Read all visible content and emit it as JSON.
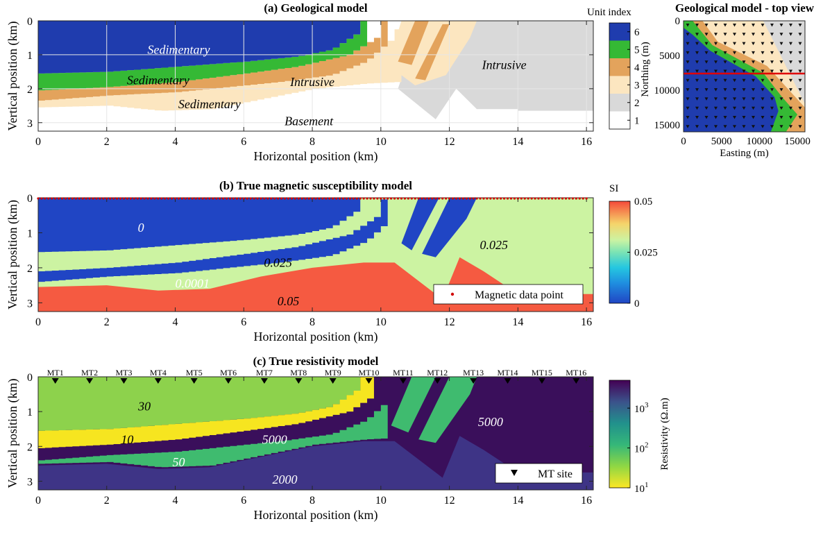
{
  "colors": {
    "unit1": "#ffffff",
    "unit2": "#d9d9d9",
    "unit3": "#fce6c0",
    "unit4": "#e3a35c",
    "unit5": "#35b935",
    "unit6": "#1f3cae",
    "sus_zero": "#2045c4",
    "sus_low": "#ccf3a2",
    "sus_high": "#f55a41",
    "res_30": "#8dd24c",
    "res_10": "#f6e520",
    "res_50": "#3fbb6f",
    "res_5000": "#3a0f5b",
    "res_2000": "#3e3486",
    "profile_line": "#e00000",
    "mag_point": "#d00000"
  },
  "chart_data": [
    {
      "type": "heatmap",
      "title": "(a) Geological model",
      "xlabel": "Horizontal position (km)",
      "ylabel": "Vertical position (km)",
      "xlim": [
        0,
        16.2
      ],
      "ylim": [
        3.25,
        0
      ],
      "xticks": [
        "0",
        "2",
        "4",
        "6",
        "8",
        "10",
        "12",
        "14",
        "16"
      ],
      "yticks": [
        "0",
        "1",
        "2",
        "3"
      ],
      "grid": true,
      "colorbar": {
        "title": "Unit index",
        "ticks": [
          "1",
          "2",
          "3",
          "4",
          "5",
          "6"
        ]
      },
      "annotations": [
        {
          "text": "Sedimentary",
          "x": 4.1,
          "y": 0.85
        },
        {
          "text": "Sedimentary",
          "x": 3.5,
          "y": 1.75
        },
        {
          "text": "Sedimentary",
          "x": 5.0,
          "y": 2.45
        },
        {
          "text": "Intrusive",
          "x": 8.0,
          "y": 1.8
        },
        {
          "text": "Intrusive",
          "x": 13.6,
          "y": 1.3
        },
        {
          "text": "Basement",
          "x": 7.9,
          "y": 2.95
        }
      ],
      "units": [
        {
          "name": "Basement",
          "index": 1
        },
        {
          "name": "Intrusive",
          "index": 2
        },
        {
          "name": "Sedimentary",
          "index": 3
        },
        {
          "name": "Sedimentary",
          "index": 4
        },
        {
          "name": "Sedimentary",
          "index": 5
        },
        {
          "name": "Sedimentary",
          "index": 6
        }
      ]
    },
    {
      "type": "heatmap",
      "title": "Geological model - top view",
      "xlabel": "Easting (m)",
      "ylabel": "Northing (m)",
      "xlim": [
        0,
        16000
      ],
      "ylim": [
        16000,
        0
      ],
      "xticks": [
        "0",
        "5000",
        "10000",
        "15000"
      ],
      "yticks": [
        "0",
        "5000",
        "10000",
        "15000"
      ],
      "profile_northing": 7600
    },
    {
      "type": "heatmap",
      "title": "(b) True magnetic susceptibility model",
      "xlabel": "Horizontal position (km)",
      "ylabel": "Vertical position (km)",
      "xlim": [
        0,
        16.2
      ],
      "ylim": [
        3.25,
        0
      ],
      "xticks": [
        "0",
        "2",
        "4",
        "6",
        "8",
        "10",
        "12",
        "14",
        "16"
      ],
      "yticks": [
        "0",
        "1",
        "2",
        "3"
      ],
      "colorbar": {
        "title": "SI",
        "ticks": [
          "0",
          "0.025",
          "0.05"
        ],
        "range": [
          0,
          0.05
        ]
      },
      "annotations": [
        {
          "text": "0",
          "x": 3.0,
          "y": 0.85
        },
        {
          "text": "0.025",
          "x": 7.0,
          "y": 1.85
        },
        {
          "text": "0.0001",
          "x": 4.5,
          "y": 2.45
        },
        {
          "text": "0.05",
          "x": 7.3,
          "y": 2.95
        },
        {
          "text": "0.025",
          "x": 13.3,
          "y": 1.35
        }
      ],
      "legend": {
        "label": "Magnetic data point",
        "position": "bottom-right"
      },
      "values_SI": [
        0,
        0.0001,
        0.025,
        0.05
      ]
    },
    {
      "type": "heatmap",
      "title": "(c) True resistivity model",
      "xlabel": "Horizontal position (km)",
      "ylabel": "Vertical position (km)",
      "xlim": [
        0,
        16.2
      ],
      "ylim": [
        3.25,
        0
      ],
      "xticks": [
        "0",
        "2",
        "4",
        "6",
        "8",
        "10",
        "12",
        "14",
        "16"
      ],
      "yticks": [
        "0",
        "1",
        "2",
        "3"
      ],
      "colorbar": {
        "title": "Resistivity (Ω.m)",
        "scale": "log",
        "range": [
          10,
          5000
        ]
      },
      "annotations": [
        {
          "text": "30",
          "x": 3.1,
          "y": 0.85
        },
        {
          "text": "10",
          "x": 2.6,
          "y": 1.8
        },
        {
          "text": "5000",
          "x": 6.9,
          "y": 1.8
        },
        {
          "text": "50",
          "x": 4.1,
          "y": 2.45
        },
        {
          "text": "2000",
          "x": 7.2,
          "y": 2.95
        },
        {
          "text": "5000",
          "x": 13.2,
          "y": 1.3
        }
      ],
      "legend": {
        "label": "MT site",
        "position": "bottom-right"
      },
      "mt_sites": [
        {
          "name": "MT1",
          "x": 0.5
        },
        {
          "name": "MT2",
          "x": 1.5
        },
        {
          "name": "MT3",
          "x": 2.5
        },
        {
          "name": "MT4",
          "x": 3.5
        },
        {
          "name": "MT5",
          "x": 4.55
        },
        {
          "name": "MT6",
          "x": 5.55
        },
        {
          "name": "MT7",
          "x": 6.6
        },
        {
          "name": "MT8",
          "x": 7.6
        },
        {
          "name": "MT9",
          "x": 8.6
        },
        {
          "name": "MT10",
          "x": 9.65
        },
        {
          "name": "MT11",
          "x": 10.65
        },
        {
          "name": "MT12",
          "x": 11.65
        },
        {
          "name": "MT13",
          "x": 12.7
        },
        {
          "name": "MT14",
          "x": 13.7
        },
        {
          "name": "MT15",
          "x": 14.7
        },
        {
          "name": "MT16",
          "x": 15.7
        }
      ],
      "values_ohm_m": [
        10,
        30,
        50,
        2000,
        5000
      ]
    }
  ]
}
